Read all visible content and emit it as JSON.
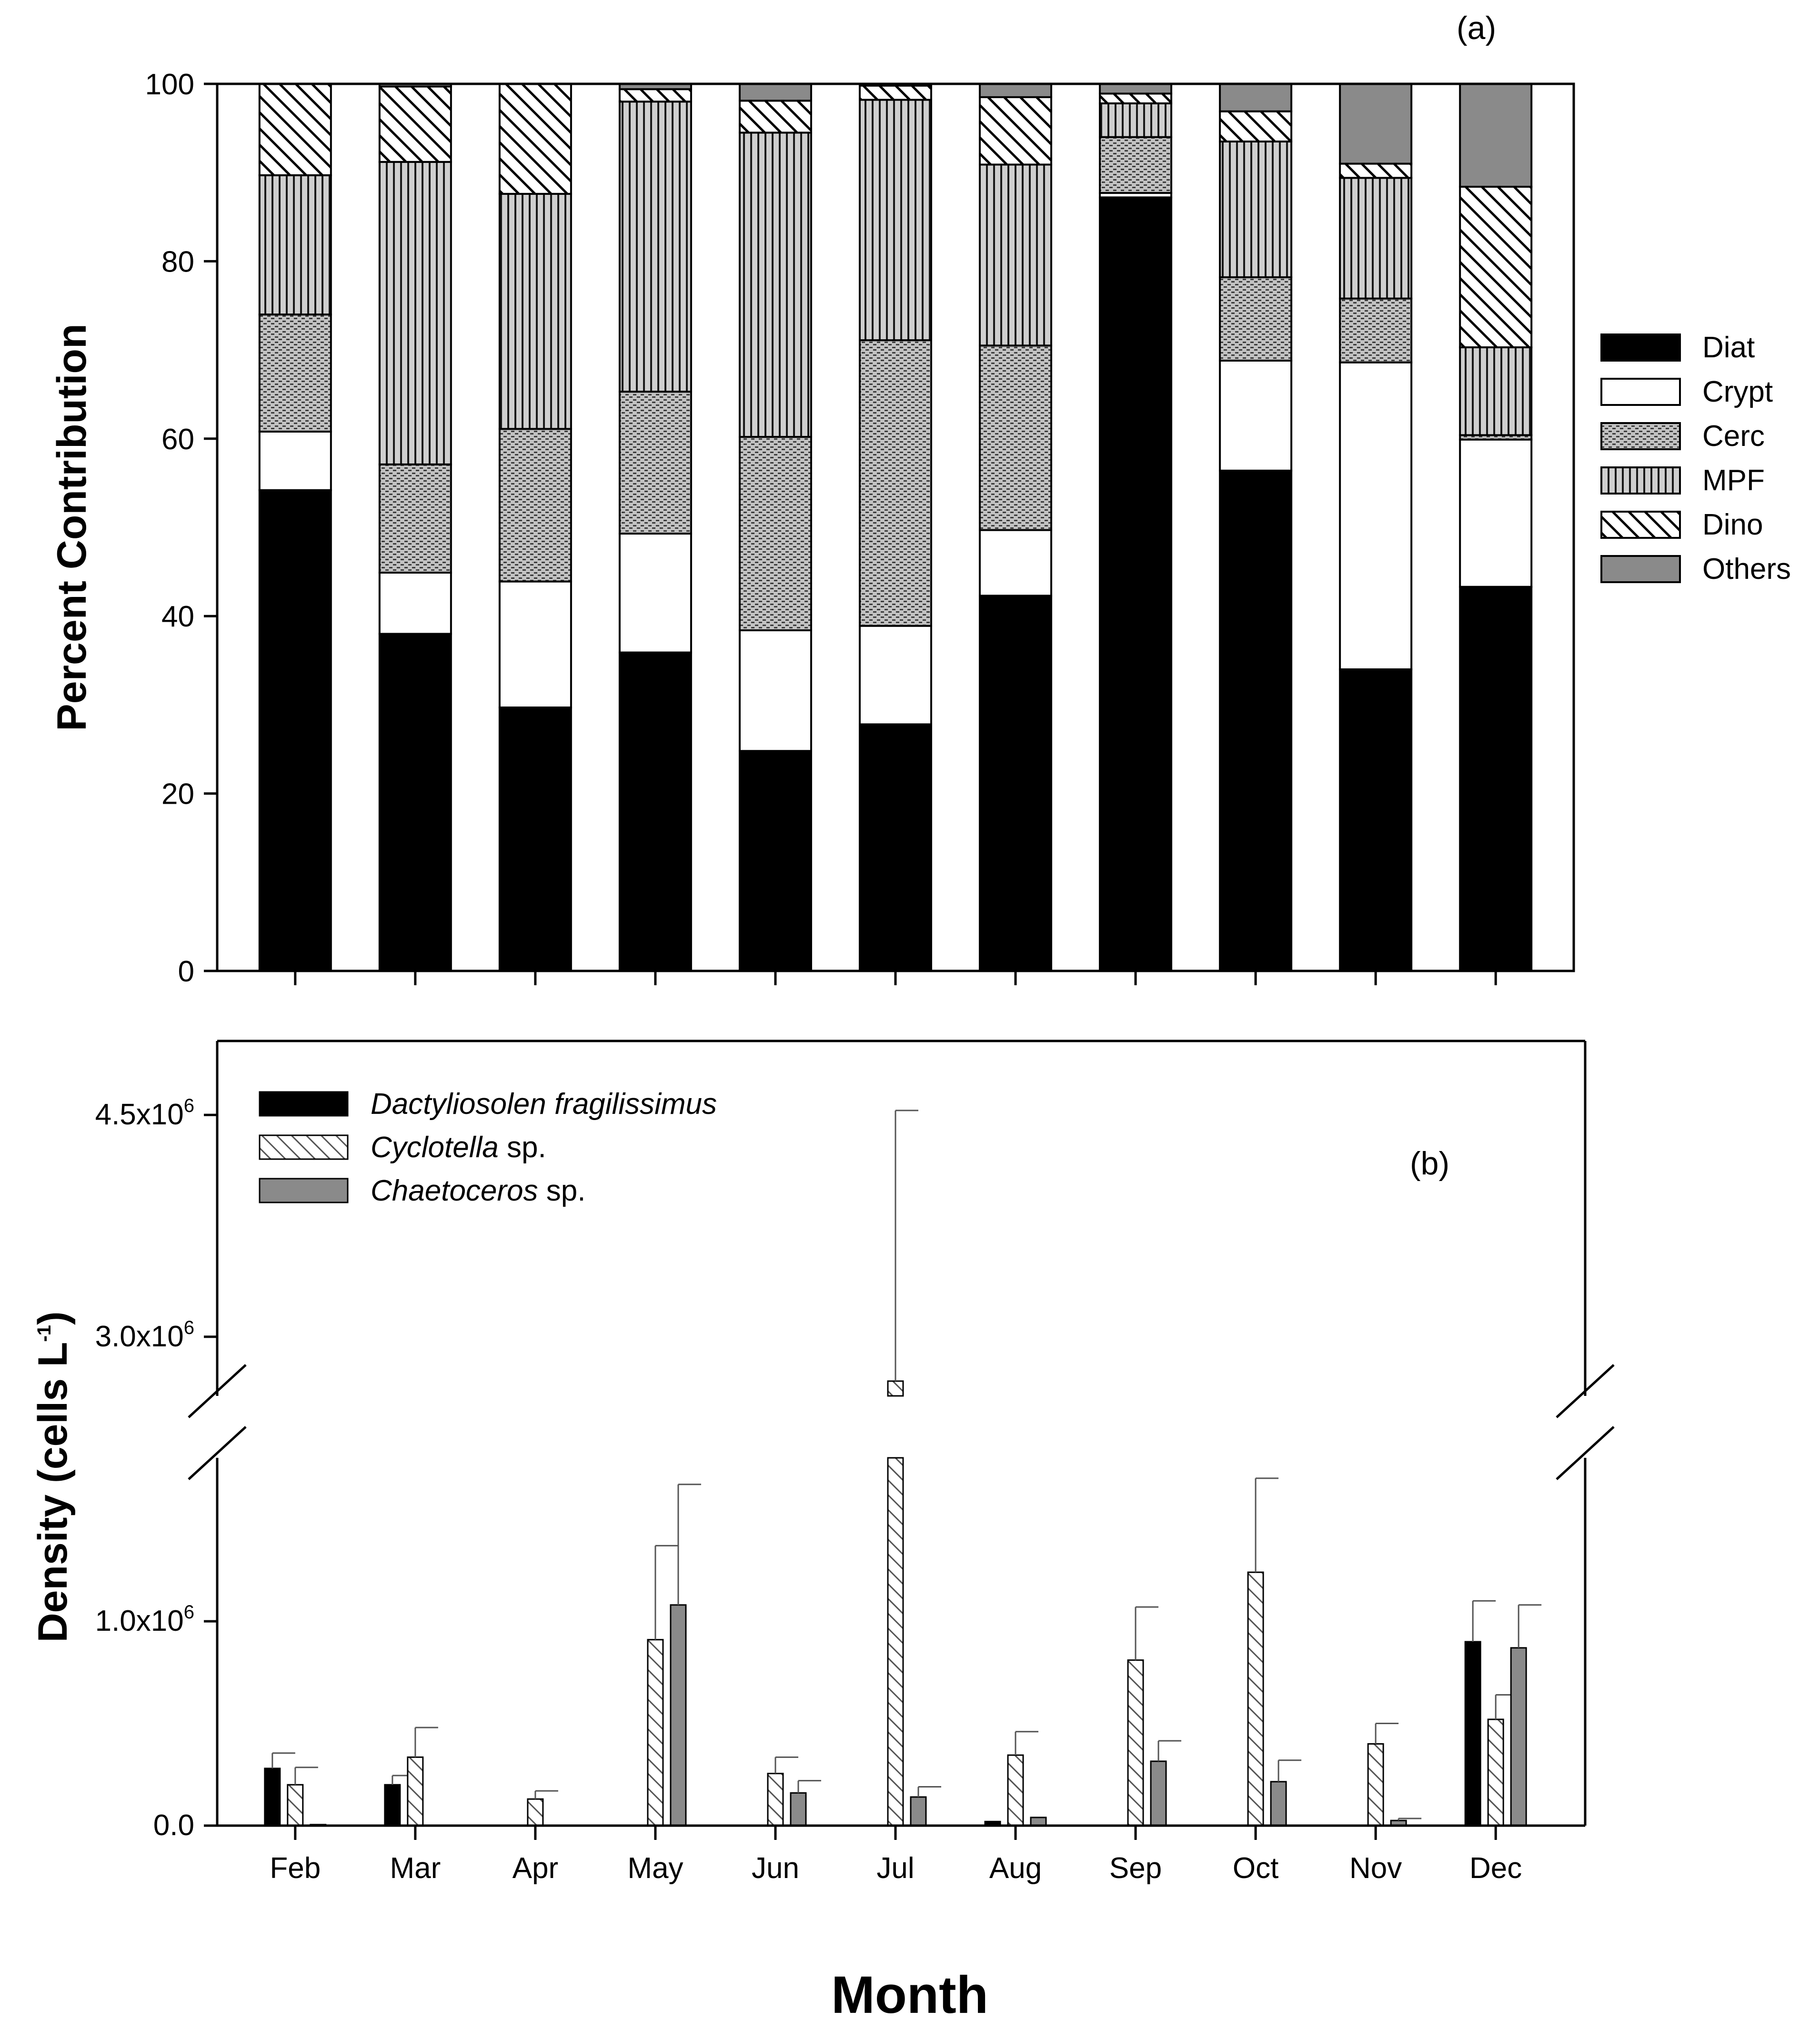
{
  "figure": {
    "x_axis_title": "Month",
    "months": [
      "Feb",
      "Mar",
      "Apr",
      "May",
      "Jun",
      "Jul",
      "Aug",
      "Sep",
      "Oct",
      "Nov",
      "Dec"
    ]
  },
  "chart_data": [
    {
      "panel": "a",
      "panel_label": "(a)",
      "type": "bar",
      "stacked": true,
      "ylabel": "Percent Contribution",
      "xlabel": "",
      "ylim": [
        0,
        100
      ],
      "yticks": [
        "0",
        "20",
        "40",
        "60",
        "80",
        "100"
      ],
      "legend_position": "right",
      "categories": [
        "Feb",
        "Mar",
        "Apr",
        "May",
        "Jun",
        "Jul",
        "Aug",
        "Sep",
        "Oct",
        "Nov",
        "Dec"
      ],
      "series": [
        {
          "name": "Diat",
          "pattern": "solid-black",
          "values": [
            54.2,
            38.0,
            29.7,
            35.9,
            24.8,
            27.8,
            42.3,
            87.2,
            56.4,
            34.0,
            43.3
          ]
        },
        {
          "name": "Crypt",
          "pattern": "white",
          "values": [
            6.6,
            6.9,
            14.2,
            13.4,
            13.6,
            11.1,
            7.4,
            0.5,
            12.4,
            34.6,
            16.6
          ]
        },
        {
          "name": "Cerc",
          "pattern": "dotted-grey",
          "values": [
            13.2,
            12.2,
            17.2,
            16.0,
            21.8,
            32.2,
            20.8,
            6.3,
            9.4,
            7.2,
            0.5
          ]
        },
        {
          "name": "MPF",
          "pattern": "vertical-lines",
          "values": [
            15.7,
            34.1,
            26.5,
            32.7,
            34.3,
            27.1,
            20.4,
            3.8,
            15.3,
            13.6,
            9.9
          ]
        },
        {
          "name": "Dino",
          "pattern": "diagonal-hatch",
          "values": [
            10.3,
            8.5,
            12.4,
            1.4,
            3.6,
            1.6,
            7.6,
            1.1,
            3.4,
            1.6,
            18.1
          ]
        },
        {
          "name": "Others",
          "pattern": "solid-grey",
          "values": [
            0.0,
            0.3,
            0.0,
            0.6,
            1.9,
            0.2,
            1.5,
            1.1,
            3.1,
            9.0,
            11.6
          ]
        }
      ]
    },
    {
      "panel": "b",
      "panel_label": "(b)",
      "type": "bar",
      "grouped": true,
      "broken_axis": true,
      "axis_break_between": [
        1800000,
        2600000
      ],
      "ylabel": "Density (cells L",
      "ylabel_sup": "-1",
      "ylabel_close": ")",
      "xlabel": "Month",
      "ylim": [
        0,
        5000000
      ],
      "yticks": [
        {
          "value": 0,
          "label": "0.0"
        },
        {
          "value": 1000000,
          "label": "1.0x10",
          "exp": "6"
        },
        {
          "value": 3000000,
          "label": "3.0x10",
          "exp": "6"
        },
        {
          "value": 4500000,
          "label": "4.5x10",
          "exp": "6"
        }
      ],
      "legend_position": "top-left",
      "categories": [
        "Feb",
        "Mar",
        "Apr",
        "May",
        "Jun",
        "Jul",
        "Aug",
        "Sep",
        "Oct",
        "Nov",
        "Dec"
      ],
      "series": [
        {
          "name": "Dactyliosolen fragilissimus",
          "name_italic": "Dactyliosolen fragilissimus",
          "name_suffix": "",
          "pattern": "solid-black",
          "values": [
            280000,
            200000,
            0,
            0,
            0,
            0,
            20000,
            0,
            0,
            0,
            900000
          ],
          "errors": [
            75000,
            45000,
            0,
            0,
            0,
            0,
            0,
            0,
            0,
            0,
            200000
          ]
        },
        {
          "name": "Cyclotella sp.",
          "name_italic": "Cyclotella",
          "name_suffix": " sp.",
          "pattern": "diagonal-hatch-light",
          "values": [
            200000,
            335000,
            130000,
            910000,
            255000,
            2700000,
            345000,
            810000,
            1240000,
            400000,
            520000
          ],
          "errors": [
            85000,
            145000,
            40000,
            460000,
            80000,
            1830000,
            115000,
            260000,
            460000,
            100000,
            120000
          ]
        },
        {
          "name": "Chaetoceros sp.",
          "name_italic": "Chaetoceros",
          "name_suffix": " sp.",
          "pattern": "solid-grey",
          "values": [
            5000,
            0,
            0,
            1080000,
            160000,
            140000,
            40000,
            315000,
            215000,
            25000,
            870000
          ],
          "errors": [
            0,
            0,
            0,
            590000,
            60000,
            50000,
            0,
            100000,
            105000,
            10000,
            210000
          ]
        }
      ]
    }
  ]
}
